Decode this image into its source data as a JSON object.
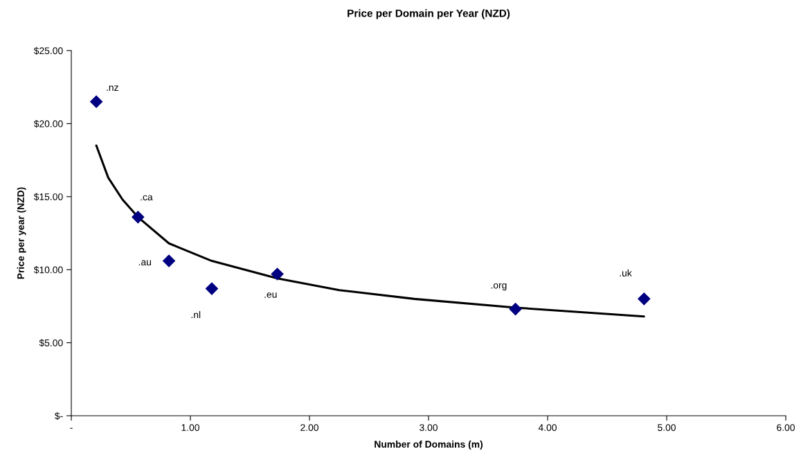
{
  "chart_data": {
    "type": "scatter",
    "title": "Price per Domain per Year (NZD)",
    "xlabel": "Number of Domains (m)",
    "ylabel": "Price per year (NZD)",
    "xlim": [
      0,
      6
    ],
    "xticks": [
      {
        "value": 0,
        "label": "-"
      },
      {
        "value": 1,
        "label": "1.00"
      },
      {
        "value": 2,
        "label": "2.00"
      },
      {
        "value": 3,
        "label": "3.00"
      },
      {
        "value": 4,
        "label": "4.00"
      },
      {
        "value": 5,
        "label": "5.00"
      },
      {
        "value": 6,
        "label": "6.00"
      }
    ],
    "ylim": [
      0,
      25
    ],
    "yticks": [
      {
        "value": 0,
        "label": "$-"
      },
      {
        "value": 5,
        "label": "$5.00"
      },
      {
        "value": 10,
        "label": "$10.00"
      },
      {
        "value": 15,
        "label": "$15.00"
      },
      {
        "value": 20,
        "label": "$20.00"
      },
      {
        "value": 25,
        "label": "$25.00"
      }
    ],
    "grid": false,
    "legend": false,
    "series": [
      {
        "color": "#000080",
        "marker": "diamond",
        "x": [
          0.21,
          0.56,
          0.82,
          1.18,
          1.73,
          3.73,
          4.81
        ],
        "values": [
          21.5,
          13.6,
          10.6,
          8.7,
          9.7,
          7.3,
          8.0
        ]
      },
      {
        "type": "line",
        "color": "#000000",
        "marker": "none",
        "line_style": "solid",
        "x": [
          0.21,
          0.31,
          0.43,
          0.56,
          0.82,
          1.18,
          1.73,
          2.25,
          2.88,
          3.73,
          4.81
        ],
        "values": [
          18.5,
          16.3,
          14.8,
          13.6,
          11.8,
          10.6,
          9.4,
          8.6,
          8.0,
          7.4,
          6.8
        ]
      }
    ],
    "annotations": [
      {
        "text": ".nz",
        "x": 0.21,
        "y": 21.5
      },
      {
        "text": ".ca",
        "x": 0.56,
        "y": 13.6
      },
      {
        "text": ".au",
        "x": 0.82,
        "y": 10.6
      },
      {
        "text": ".nl",
        "x": 1.18,
        "y": 8.7
      },
      {
        "text": ".eu",
        "x": 1.73,
        "y": 9.7
      },
      {
        "text": ".org",
        "x": 3.73,
        "y": 7.3
      },
      {
        "text": ".uk",
        "x": 4.81,
        "y": 8.0
      }
    ]
  }
}
